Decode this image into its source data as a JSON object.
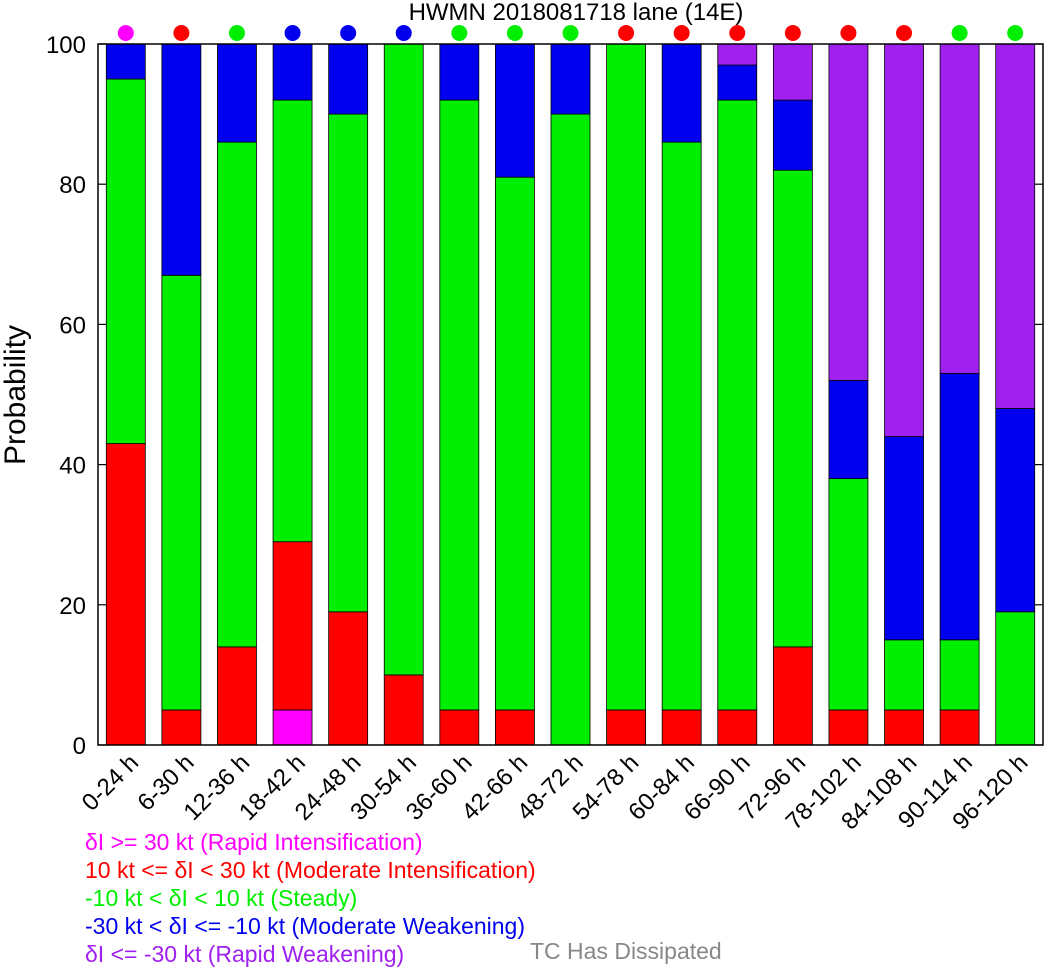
{
  "chart_data": {
    "type": "bar",
    "stacked": true,
    "title": "HWMN 2018081718 lane (14E)",
    "ylabel": "Probability",
    "xlabel": "",
    "ylim": [
      0,
      100
    ],
    "yticks": [
      0,
      20,
      40,
      60,
      80,
      100
    ],
    "categories": [
      "0-24 h",
      "6-30 h",
      "12-36 h",
      "18-42 h",
      "24-48 h",
      "30-54 h",
      "36-60 h",
      "42-66 h",
      "48-72 h",
      "54-78 h",
      "60-84 h",
      "66-90 h",
      "72-96 h",
      "78-102 h",
      "84-108 h",
      "90-114 h",
      "96-120 h"
    ],
    "series": [
      {
        "name": "δI >= 30 kt (Rapid Intensification)",
        "color": "#ff00ff",
        "values": [
          0,
          0,
          0,
          5,
          0,
          0,
          0,
          0,
          0,
          0,
          0,
          0,
          0,
          0,
          0,
          0,
          0
        ]
      },
      {
        "name": "10 kt <= δI < 30 kt (Moderate Intensification)",
        "color": "#ff0000",
        "values": [
          43,
          5,
          14,
          24,
          19,
          10,
          5,
          5,
          0,
          5,
          5,
          5,
          14,
          5,
          5,
          5,
          0
        ]
      },
      {
        "name": "-10 kt < δI < 10 kt (Steady)",
        "color": "#00ee00",
        "values": [
          52,
          62,
          72,
          63,
          71,
          90,
          87,
          76,
          90,
          95,
          81,
          87,
          68,
          33,
          10,
          10,
          19
        ]
      },
      {
        "name": "-30 kt < δI <= -10 kt (Moderate Weakening)",
        "color": "#0000ee",
        "values": [
          5,
          33,
          14,
          8,
          10,
          0,
          8,
          19,
          10,
          0,
          14,
          5,
          10,
          14,
          29,
          38,
          29
        ]
      },
      {
        "name": "δI <= -30 kt (Rapid Weakening)",
        "color": "#a020f0",
        "values": [
          0,
          0,
          0,
          0,
          0,
          0,
          0,
          0,
          0,
          0,
          0,
          3,
          8,
          48,
          56,
          47,
          52
        ]
      }
    ],
    "top_markers": [
      "#ff00ff",
      "#ff0000",
      "#00ee00",
      "#0000ee",
      "#0000ee",
      "#0000ee",
      "#00ee00",
      "#00ee00",
      "#00ee00",
      "#ff0000",
      "#ff0000",
      "#ff0000",
      "#ff0000",
      "#ff0000",
      "#ff0000",
      "#00ee00",
      "#00ee00"
    ],
    "dissipated_note": {
      "label": "TC Has Dissipated",
      "color": "#888888"
    }
  }
}
